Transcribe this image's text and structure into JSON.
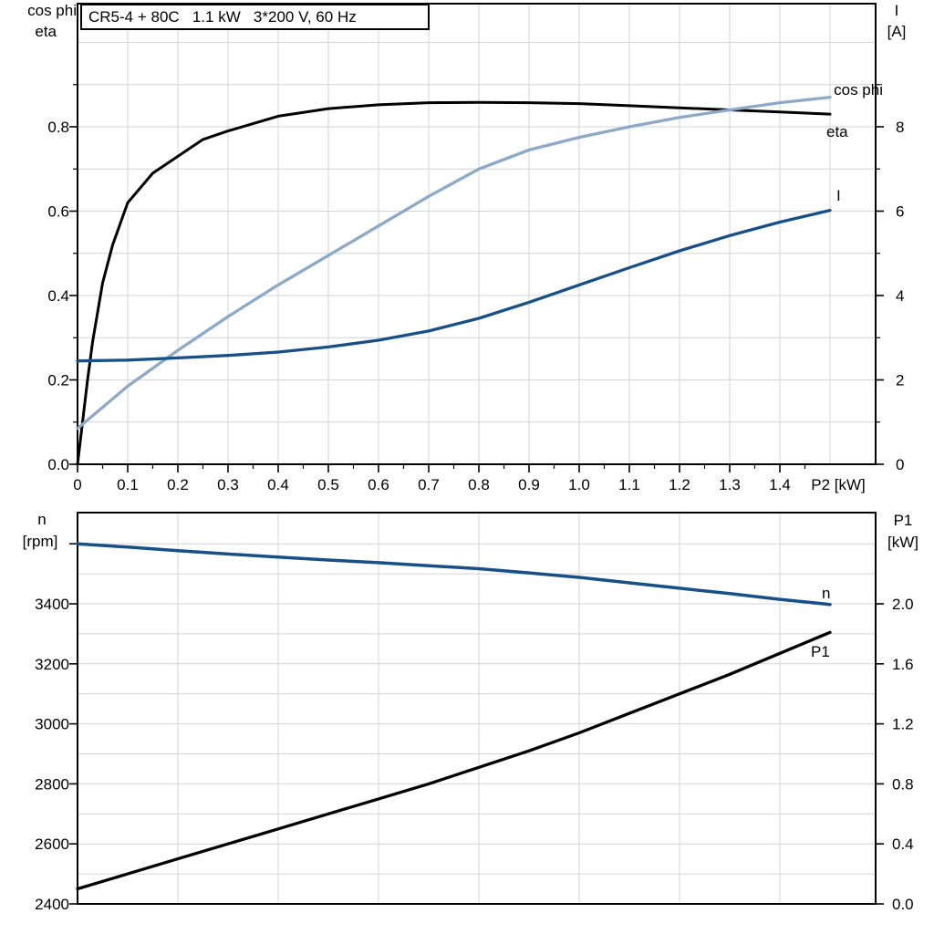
{
  "title": "CR5-4 + 80C   1.1 kW   3*200 V, 60 Hz",
  "colors": {
    "black": "#000000",
    "dark_blue": "#175087",
    "light_blue": "#8caac8",
    "grid": "#d4d4d4",
    "frame": "#000000"
  },
  "top_chart": {
    "left_axis_title_line1": "cos phi",
    "left_axis_title_line2": "eta",
    "right_axis_title_line1": "I",
    "right_axis_title_line2": "[A]",
    "x_axis_title": "P2 [kW]",
    "x_tick_labels": [
      "0",
      "0.1",
      "0.2",
      "0.3",
      "0.4",
      "0.5",
      "0.6",
      "0.7",
      "0.8",
      "0.9",
      "1.0",
      "1.1",
      "1.2",
      "1.3",
      "1.4"
    ],
    "left_tick_labels": [
      "0.0",
      "0.2",
      "0.4",
      "0.6",
      "0.8"
    ],
    "right_tick_labels": [
      "0",
      "2",
      "4",
      "6",
      "8"
    ],
    "curve_labels": [
      "cos phi",
      "eta",
      "I"
    ]
  },
  "bottom_chart": {
    "left_axis_title_line1": "n",
    "left_axis_title_line2": "[rpm]",
    "right_axis_title_line1": "P1",
    "right_axis_title_line2": "[kW]",
    "left_tick_labels": [
      "2400",
      "2600",
      "2800",
      "3000",
      "3200",
      "3400"
    ],
    "right_tick_labels": [
      "0.0",
      "0.4",
      "0.8",
      "1.2",
      "1.6",
      "2.0"
    ],
    "curve_labels": [
      "n",
      "P1"
    ]
  },
  "chart_data": [
    {
      "type": "line",
      "title": "CR5-4 + 80C   1.1 kW   3*200 V, 60 Hz",
      "xlabel": "P2 [kW]",
      "x_range": [
        0,
        1.5
      ],
      "x_tick_step": 0.1,
      "grid": true,
      "left_axis": {
        "label": "cos phi / eta",
        "min": 0,
        "max": 1.0,
        "ticks": [
          0,
          0.2,
          0.4,
          0.6,
          0.8
        ]
      },
      "right_axis": {
        "label": "I [A]",
        "min": 0,
        "max": 10,
        "ticks": [
          0,
          2,
          4,
          6,
          8
        ]
      },
      "series": [
        {
          "name": "eta",
          "axis": "left",
          "color_key": "black",
          "x": [
            0,
            0.01,
            0.02,
            0.03,
            0.05,
            0.07,
            0.1,
            0.15,
            0.2,
            0.25,
            0.3,
            0.4,
            0.5,
            0.6,
            0.7,
            0.8,
            0.9,
            1.0,
            1.1,
            1.2,
            1.3,
            1.4,
            1.5
          ],
          "values": [
            0,
            0.1,
            0.2,
            0.29,
            0.43,
            0.52,
            0.62,
            0.69,
            0.73,
            0.77,
            0.79,
            0.825,
            0.843,
            0.852,
            0.857,
            0.858,
            0.857,
            0.855,
            0.85,
            0.845,
            0.84,
            0.835,
            0.83
          ]
        },
        {
          "name": "cos phi",
          "axis": "left",
          "color_key": "light_blue",
          "x": [
            0,
            0.1,
            0.2,
            0.3,
            0.4,
            0.5,
            0.6,
            0.7,
            0.8,
            0.9,
            1.0,
            1.1,
            1.2,
            1.3,
            1.4,
            1.5
          ],
          "values": [
            0.085,
            0.185,
            0.27,
            0.35,
            0.425,
            0.495,
            0.565,
            0.635,
            0.7,
            0.745,
            0.775,
            0.8,
            0.822,
            0.84,
            0.857,
            0.87
          ]
        },
        {
          "name": "I",
          "axis": "right",
          "color_key": "dark_blue",
          "x": [
            0,
            0.1,
            0.2,
            0.3,
            0.4,
            0.5,
            0.6,
            0.7,
            0.8,
            0.9,
            1.0,
            1.1,
            1.2,
            1.3,
            1.4,
            1.5
          ],
          "values": [
            2.45,
            2.47,
            2.52,
            2.58,
            2.66,
            2.78,
            2.94,
            3.16,
            3.46,
            3.84,
            4.25,
            4.66,
            5.06,
            5.42,
            5.74,
            6.02
          ]
        }
      ]
    },
    {
      "type": "line",
      "x_range": [
        0,
        1.5
      ],
      "grid": true,
      "left_axis": {
        "label": "n [rpm]",
        "min": 2400,
        "max": 3700,
        "ticks": [
          2400,
          2600,
          2800,
          3000,
          3200,
          3400
        ],
        "unlabeled_ticks": [
          3600
        ],
        "minor_grid_step": 100
      },
      "right_axis": {
        "label": "P1 [kW]",
        "min": 0,
        "max": 2.6,
        "ticks": [
          0,
          0.4,
          0.8,
          1.2,
          1.6,
          2.0
        ],
        "minor_grid_step": 0.2
      },
      "series": [
        {
          "name": "n",
          "axis": "left",
          "color_key": "dark_blue",
          "x": [
            0,
            0.1,
            0.2,
            0.3,
            0.4,
            0.5,
            0.6,
            0.7,
            0.8,
            0.9,
            1.0,
            1.1,
            1.2,
            1.3,
            1.4,
            1.5
          ],
          "values": [
            3600,
            3589,
            3577,
            3566,
            3556,
            3546,
            3537,
            3527,
            3517,
            3503,
            3488,
            3470,
            3452,
            3434,
            3415,
            3398
          ]
        },
        {
          "name": "P1",
          "axis": "right",
          "color_key": "black",
          "x": [
            0,
            0.1,
            0.2,
            0.3,
            0.4,
            0.5,
            0.6,
            0.7,
            0.8,
            0.9,
            1.0,
            1.1,
            1.2,
            1.3,
            1.4,
            1.5
          ],
          "values": [
            0.1,
            0.2,
            0.3,
            0.4,
            0.5,
            0.6,
            0.7,
            0.8,
            0.91,
            1.02,
            1.14,
            1.27,
            1.4,
            1.53,
            1.67,
            1.81
          ]
        }
      ]
    }
  ]
}
